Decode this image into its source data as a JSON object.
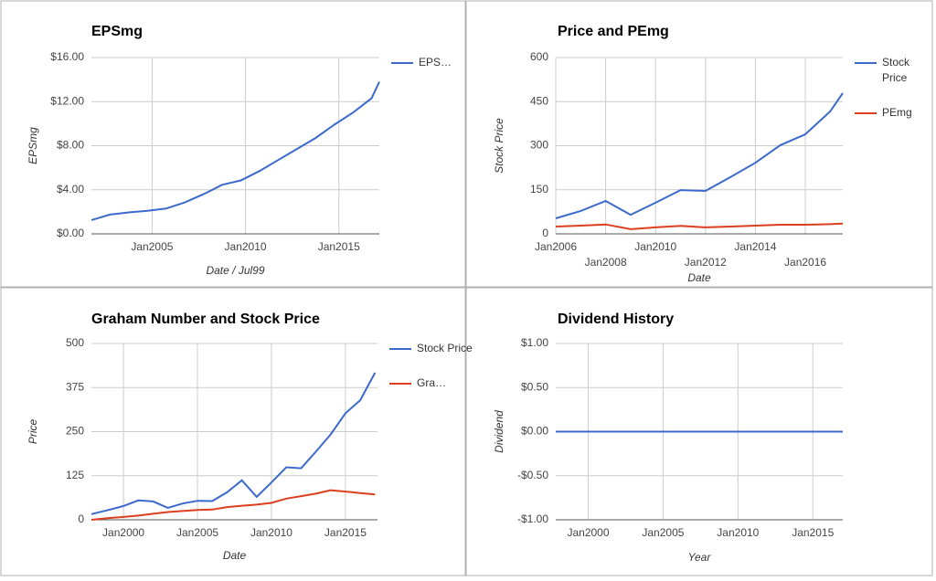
{
  "chart_data": [
    {
      "type": "line",
      "title": "EPSmg",
      "x_label": "Date / Jul99",
      "y_label": "EPSmg",
      "x": [
        "2001-10",
        "2002-10",
        "2003-10",
        "2004-10",
        "2005-10",
        "2006-10",
        "2007-10",
        "2008-10",
        "2009-10",
        "2010-10",
        "2011-10",
        "2012-10",
        "2013-10",
        "2014-10",
        "2015-10",
        "2016-10",
        "2017-03"
      ],
      "series": [
        {
          "name": "EPS…",
          "color": "#3b69cc",
          "values": [
            1.25,
            1.75,
            1.95,
            2.1,
            2.3,
            2.85,
            3.6,
            4.45,
            4.85,
            5.7,
            6.7,
            7.7,
            8.7,
            9.9,
            11.0,
            12.3,
            13.8
          ]
        }
      ],
      "xlim": [
        "2001-10",
        "2017-03"
      ],
      "xticks": [
        {
          "value": "2005-01",
          "label": "Jan2005"
        },
        {
          "value": "2010-01",
          "label": "Jan2010"
        },
        {
          "value": "2015-01",
          "label": "Jan2015"
        }
      ],
      "ylim": [
        0,
        16
      ],
      "yticks": [
        {
          "value": 0,
          "label": "$0.00"
        },
        {
          "value": 4,
          "label": "$4.00"
        },
        {
          "value": 8,
          "label": "$8.00"
        },
        {
          "value": 12,
          "label": "$12.00"
        },
        {
          "value": 16,
          "label": "$16.00"
        }
      ],
      "grid": true,
      "legend": "right"
    },
    {
      "type": "line",
      "title": "Price and PEmg",
      "x_label": "Date",
      "y_label": "Stock Price",
      "x": [
        "2006-01",
        "2007-01",
        "2008-01",
        "2009-01",
        "2010-01",
        "2011-01",
        "2012-01",
        "2013-01",
        "2014-01",
        "2015-01",
        "2016-01",
        "2017-01",
        "2017-07"
      ],
      "series": [
        {
          "name": "Stock Price",
          "color": "#3b69cc",
          "values": [
            53,
            78,
            112,
            65,
            106,
            149,
            146,
            193,
            242,
            302,
            339,
            417,
            479
          ]
        },
        {
          "name": "PEmg",
          "color": "#dc3f1e",
          "values": [
            25,
            28,
            32,
            16,
            22,
            27,
            22,
            25,
            28,
            31,
            31,
            33,
            35
          ]
        }
      ],
      "xlim": [
        "2006-01",
        "2017-07"
      ],
      "xticks": [
        {
          "value": "2006-01",
          "label": "Jan2006"
        },
        {
          "value": "2008-01",
          "label": "Jan2008"
        },
        {
          "value": "2010-01",
          "label": "Jan2010"
        },
        {
          "value": "2012-01",
          "label": "Jan2012"
        },
        {
          "value": "2014-01",
          "label": "Jan2014"
        },
        {
          "value": "2016-01",
          "label": "Jan2016"
        }
      ],
      "ylim": [
        0,
        600
      ],
      "yticks": [
        0,
        150,
        300,
        450,
        600
      ],
      "grid": true,
      "legend": "right"
    },
    {
      "type": "line",
      "title": "Graham Number and Stock Price",
      "x_label": "Date",
      "y_label": "Price",
      "x": [
        "1997-11",
        "1999-01",
        "2000-01",
        "2001-01",
        "2002-01",
        "2003-01",
        "2004-01",
        "2005-01",
        "2006-01",
        "2007-01",
        "2008-01",
        "2009-01",
        "2010-01",
        "2011-01",
        "2012-01",
        "2013-01",
        "2014-01",
        "2015-01",
        "2016-01",
        "2017-01"
      ],
      "series": [
        {
          "name": "Stock Price",
          "color": "#3b69cc",
          "values": [
            16,
            28,
            39,
            55,
            52,
            34,
            46,
            54,
            53,
            78,
            112,
            65,
            106,
            149,
            146,
            193,
            242,
            302,
            339,
            417
          ]
        },
        {
          "name": "Gra…",
          "color": "#dc3f1e",
          "values": [
            0,
            5,
            8,
            12,
            17,
            22,
            25,
            28,
            29,
            36,
            40,
            43,
            48,
            60,
            67,
            74,
            84,
            80,
            76,
            72
          ]
        }
      ],
      "xlim": [
        "1997-11",
        "2017-03"
      ],
      "xticks": [
        {
          "value": "2000-01",
          "label": "Jan2000"
        },
        {
          "value": "2005-01",
          "label": "Jan2005"
        },
        {
          "value": "2010-01",
          "label": "Jan2010"
        },
        {
          "value": "2015-01",
          "label": "Jan2015"
        }
      ],
      "ylim": [
        0,
        500
      ],
      "yticks": [
        0,
        125,
        250,
        375,
        500
      ],
      "grid": true,
      "legend": "right"
    },
    {
      "type": "line",
      "title": "Dividend History",
      "x_label": "Year",
      "y_label": "Dividend",
      "x": [
        "1997-11",
        "1999-01",
        "2000-01",
        "2001-01",
        "2002-01",
        "2003-01",
        "2004-01",
        "2005-01",
        "2006-01",
        "2007-01",
        "2008-01",
        "2009-01",
        "2010-01",
        "2011-01",
        "2012-01",
        "2013-01",
        "2014-01",
        "2015-01",
        "2016-01",
        "2017-01"
      ],
      "series": [
        {
          "color": "#3b69cc",
          "values": [
            0,
            0,
            0,
            0,
            0,
            0,
            0,
            0,
            0,
            0,
            0,
            0,
            0,
            0,
            0,
            0,
            0,
            0,
            0,
            0
          ]
        }
      ],
      "xlim": [
        "1997-11",
        "2017-01"
      ],
      "xticks": [
        {
          "value": "2000-01",
          "label": "Jan2000"
        },
        {
          "value": "2005-01",
          "label": "Jan2005"
        },
        {
          "value": "2010-01",
          "label": "Jan2010"
        },
        {
          "value": "2015-01",
          "label": "Jan2015"
        }
      ],
      "ylim": [
        -1,
        1
      ],
      "yticks": [
        {
          "value": -1,
          "label": "-$1.00"
        },
        {
          "value": -0.5,
          "label": "-$0.50"
        },
        {
          "value": 0,
          "label": "$0.00"
        },
        {
          "value": 0.5,
          "label": "$0.50"
        },
        {
          "value": 1,
          "label": "$1.00"
        }
      ],
      "grid": true
    }
  ]
}
